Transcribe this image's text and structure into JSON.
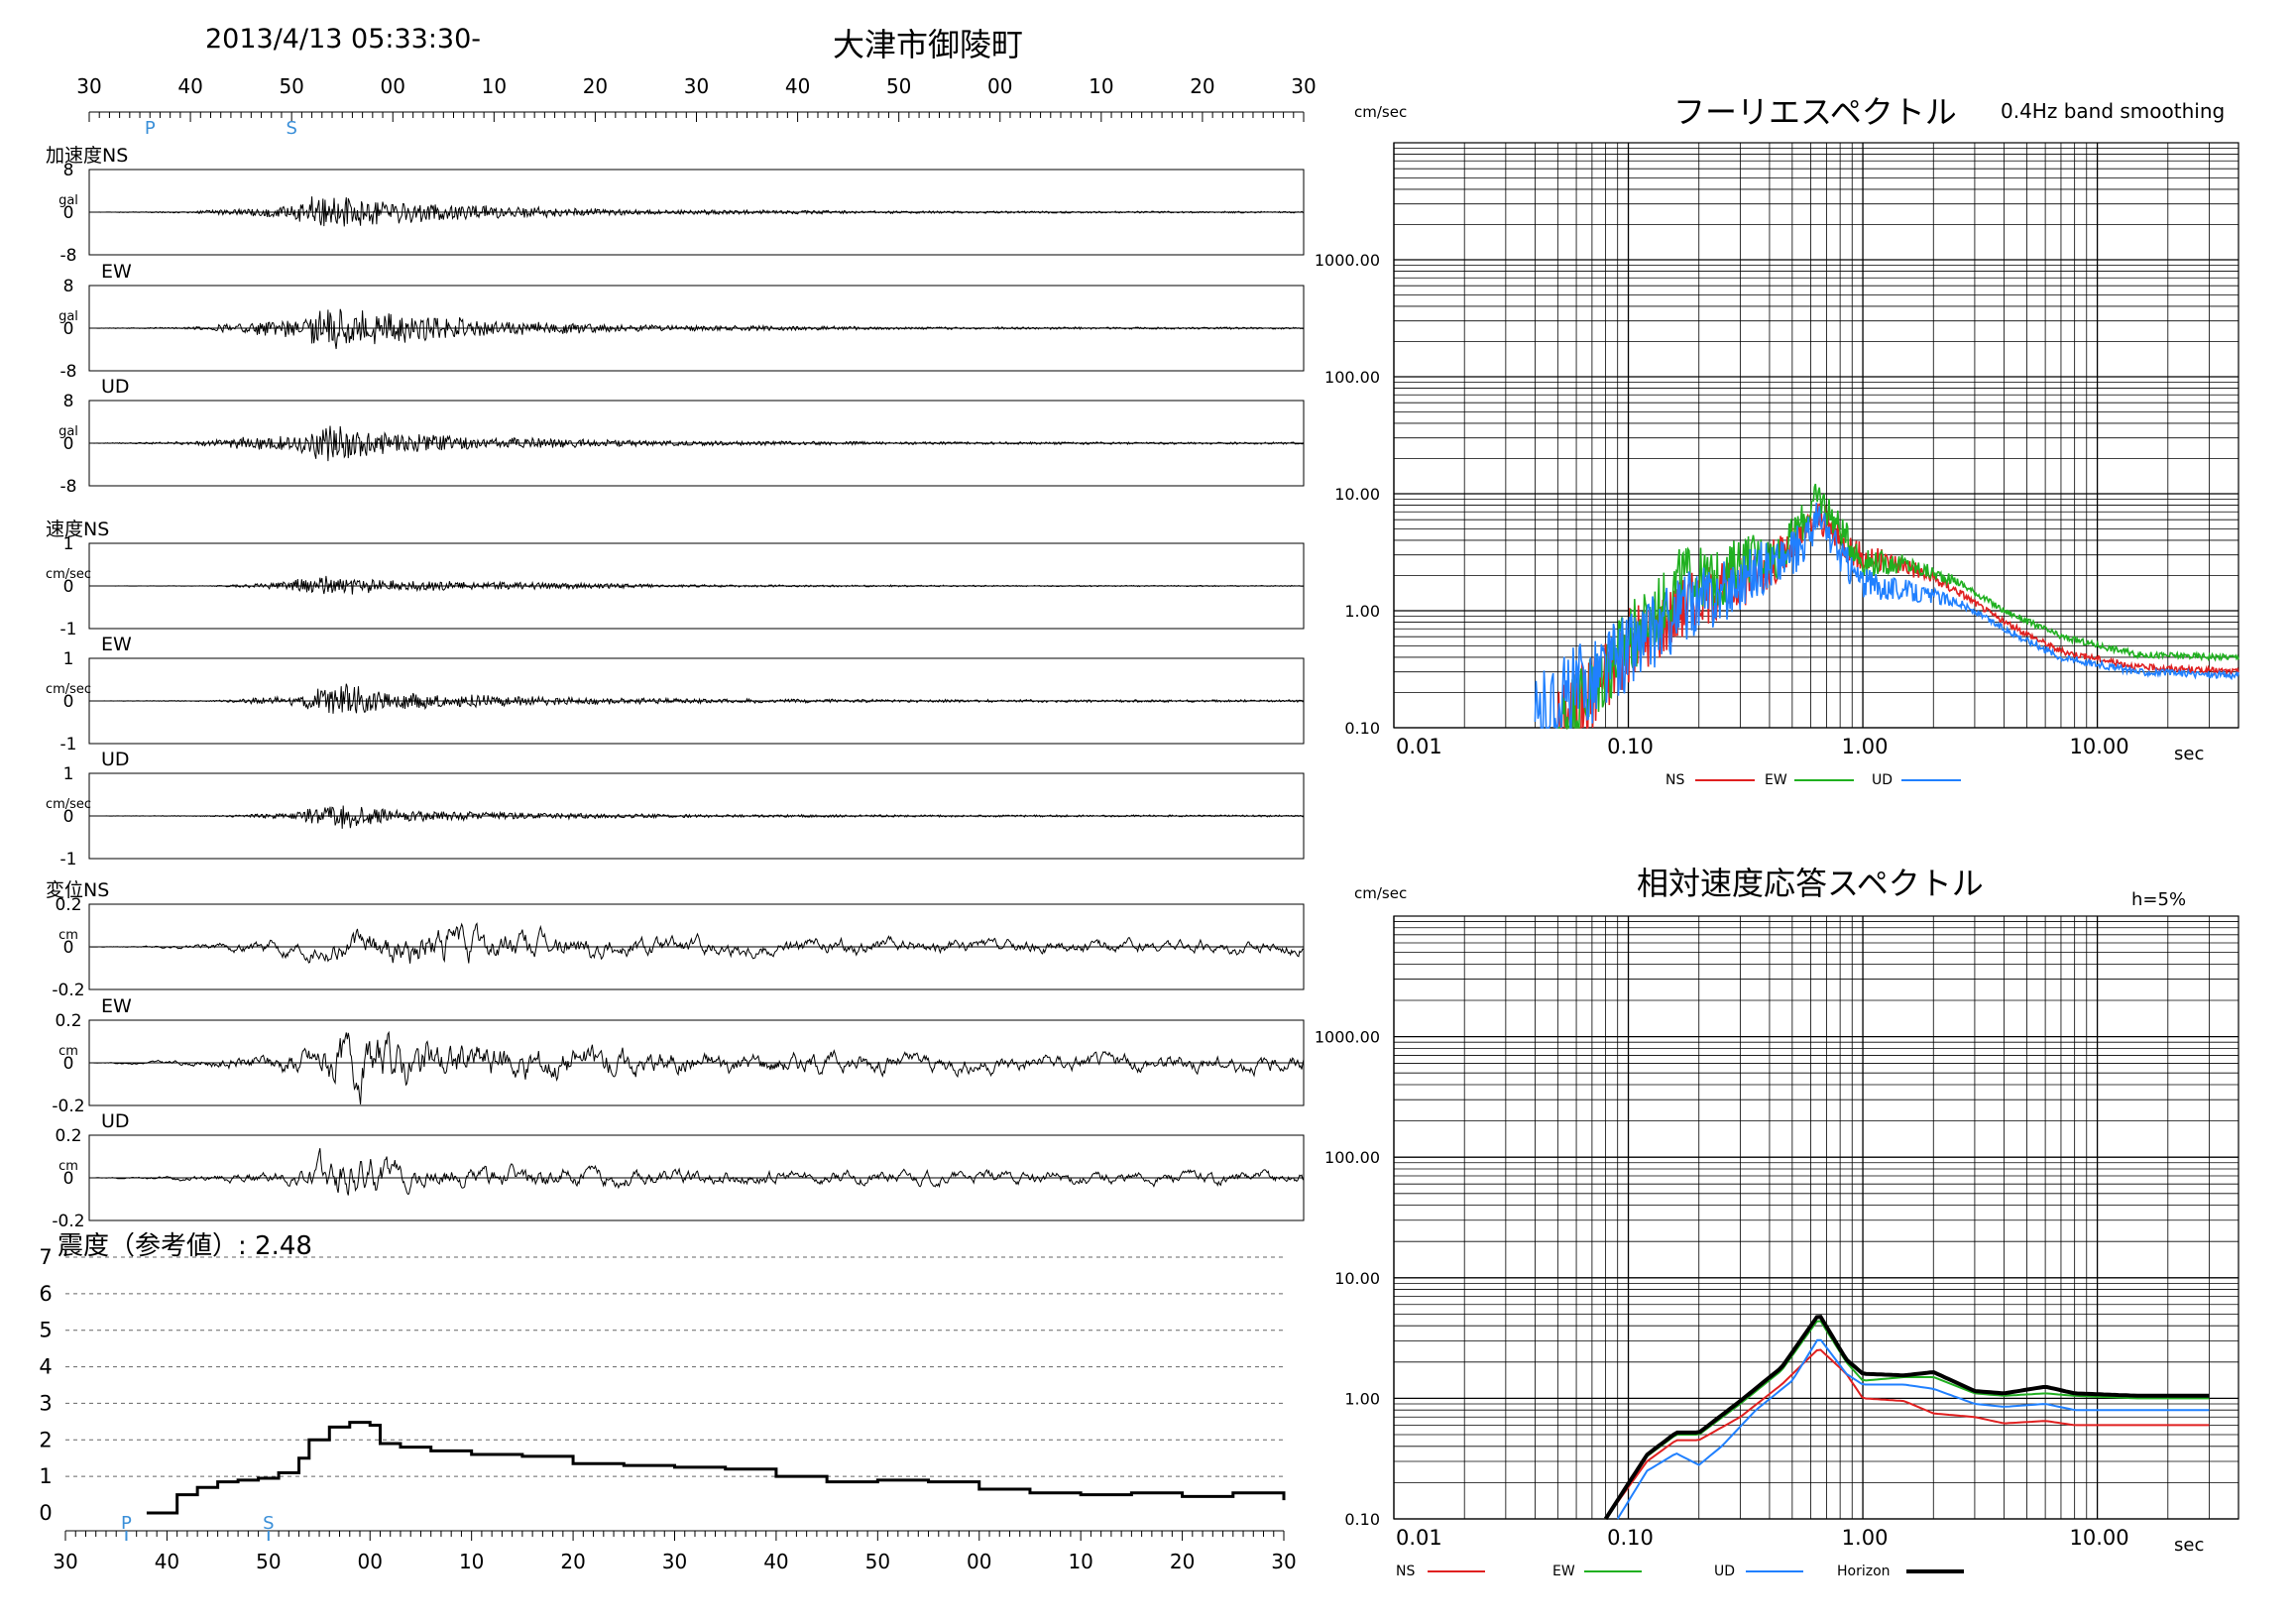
{
  "header": {
    "datetime": "2013/4/13 05:33:30-",
    "station": "大津市御陵町"
  },
  "colors": {
    "ns": "#e02020",
    "ew": "#20b020",
    "ud": "#2080ff",
    "horizon": "#000000",
    "marker": "#3a8fd8"
  },
  "waveforms": {
    "time_ticks": [
      "30",
      "40",
      "50",
      "00",
      "10",
      "20",
      "30",
      "40",
      "50",
      "00",
      "10",
      "20",
      "30"
    ],
    "phase_markers": [
      {
        "label": "P",
        "t": 36
      },
      {
        "label": "S",
        "t": 50
      }
    ],
    "panels": [
      {
        "name": "acc-ns",
        "label": "加速度NS",
        "unit": "gal",
        "ticks": [
          "8",
          "0",
          "-8"
        ],
        "max": 8,
        "amp": 3.4,
        "envelope": [
          [
            0,
            0
          ],
          [
            10,
            0.05
          ],
          [
            16,
            0.25
          ],
          [
            20,
            0.35
          ],
          [
            22,
            1.0
          ],
          [
            28,
            0.7
          ],
          [
            40,
            0.35
          ],
          [
            55,
            0.15
          ],
          [
            80,
            0.07
          ],
          [
            120,
            0.04
          ]
        ],
        "seed": 11
      },
      {
        "name": "acc-ew",
        "label": "EW",
        "unit": "gal",
        "ticks": [
          "8",
          "0",
          "-8"
        ],
        "max": 8,
        "amp": 4.2,
        "envelope": [
          [
            0,
            0
          ],
          [
            10,
            0.05
          ],
          [
            16,
            0.3
          ],
          [
            21,
            0.45
          ],
          [
            23,
            1.0
          ],
          [
            28,
            0.8
          ],
          [
            40,
            0.35
          ],
          [
            55,
            0.15
          ],
          [
            80,
            0.06
          ],
          [
            120,
            0.04
          ]
        ],
        "seed": 23
      },
      {
        "name": "acc-ud",
        "label": "UD",
        "unit": "gal",
        "ticks": [
          "8",
          "0",
          "-8"
        ],
        "max": 8,
        "amp": 3.8,
        "envelope": [
          [
            0,
            0
          ],
          [
            10,
            0.08
          ],
          [
            16,
            0.35
          ],
          [
            21,
            0.5
          ],
          [
            23,
            1.0
          ],
          [
            28,
            0.6
          ],
          [
            40,
            0.3
          ],
          [
            55,
            0.14
          ],
          [
            80,
            0.07
          ],
          [
            120,
            0.05
          ]
        ],
        "seed": 37
      },
      {
        "name": "vel-ns",
        "label": "速度NS",
        "unit": "cm/sec",
        "ticks": [
          "1",
          "0",
          "-1"
        ],
        "max": 1,
        "amp": 0.25,
        "envelope": [
          [
            0,
            0
          ],
          [
            12,
            0.03
          ],
          [
            18,
            0.3
          ],
          [
            23,
            1.0
          ],
          [
            32,
            0.5
          ],
          [
            45,
            0.3
          ],
          [
            60,
            0.12
          ],
          [
            90,
            0.06
          ],
          [
            120,
            0.05
          ]
        ],
        "seed": 41
      },
      {
        "name": "vel-ew",
        "label": "EW",
        "unit": "cm/sec",
        "ticks": [
          "1",
          "0",
          "-1"
        ],
        "max": 1,
        "amp": 0.45,
        "envelope": [
          [
            0,
            0
          ],
          [
            12,
            0.03
          ],
          [
            20,
            0.25
          ],
          [
            25,
            1.0
          ],
          [
            30,
            0.45
          ],
          [
            45,
            0.22
          ],
          [
            60,
            0.12
          ],
          [
            90,
            0.07
          ],
          [
            120,
            0.06
          ]
        ],
        "seed": 53
      },
      {
        "name": "vel-ud",
        "label": "UD",
        "unit": "cm/sec",
        "ticks": [
          "1",
          "0",
          "-1"
        ],
        "max": 1,
        "amp": 0.35,
        "envelope": [
          [
            0,
            0
          ],
          [
            12,
            0.03
          ],
          [
            20,
            0.2
          ],
          [
            25,
            1.0
          ],
          [
            30,
            0.4
          ],
          [
            45,
            0.2
          ],
          [
            60,
            0.1
          ],
          [
            90,
            0.07
          ],
          [
            120,
            0.06
          ]
        ],
        "seed": 67
      },
      {
        "name": "disp-ns",
        "label": "変位NS",
        "unit": "cm",
        "ticks": [
          "0.2",
          "0",
          "-0.2"
        ],
        "max": 0.2,
        "amp": 0.12,
        "envelope": [
          [
            0,
            0
          ],
          [
            10,
            0.1
          ],
          [
            20,
            0.4
          ],
          [
            35,
            1.0
          ],
          [
            45,
            0.6
          ],
          [
            60,
            0.4
          ],
          [
            90,
            0.3
          ],
          [
            120,
            0.3
          ]
        ],
        "seed": 71
      },
      {
        "name": "disp-ew",
        "label": "EW",
        "unit": "cm",
        "ticks": [
          "0.2",
          "0",
          "-0.2"
        ],
        "max": 0.2,
        "amp": 0.16,
        "envelope": [
          [
            0,
            0
          ],
          [
            10,
            0.1
          ],
          [
            20,
            0.4
          ],
          [
            25,
            1.0
          ],
          [
            40,
            0.7
          ],
          [
            60,
            0.4
          ],
          [
            90,
            0.3
          ],
          [
            120,
            0.3
          ]
        ],
        "seed": 83
      },
      {
        "name": "disp-ud",
        "label": "UD",
        "unit": "cm",
        "ticks": [
          "0.2",
          "0",
          "-0.2"
        ],
        "max": 0.2,
        "amp": 0.14,
        "envelope": [
          [
            0,
            0
          ],
          [
            10,
            0.1
          ],
          [
            20,
            0.3
          ],
          [
            25,
            1.0
          ],
          [
            32,
            0.5
          ],
          [
            60,
            0.3
          ],
          [
            90,
            0.25
          ],
          [
            120,
            0.25
          ]
        ],
        "seed": 97
      }
    ]
  },
  "intensity": {
    "title": "震度（参考値）: 2.48",
    "yticks": [
      "7",
      "6",
      "5",
      "4",
      "3",
      "2",
      "1",
      "0"
    ],
    "time_ticks": [
      "30",
      "40",
      "50",
      "00",
      "10",
      "20",
      "30",
      "40",
      "50",
      "00",
      "10",
      "20",
      "30"
    ],
    "phase_markers": [
      {
        "label": "P",
        "t": 36
      },
      {
        "label": "S",
        "t": 50
      }
    ],
    "series": [
      [
        0,
        0
      ],
      [
        38,
        0
      ],
      [
        40,
        0
      ],
      [
        41,
        0.5
      ],
      [
        43,
        0.7
      ],
      [
        45,
        0.85
      ],
      [
        47,
        0.9
      ],
      [
        49,
        0.95
      ],
      [
        51,
        1.1
      ],
      [
        53,
        1.5
      ],
      [
        54,
        2.0
      ],
      [
        56,
        2.35
      ],
      [
        58,
        2.48
      ],
      [
        60,
        2.4
      ],
      [
        61,
        1.9
      ],
      [
        63,
        1.8
      ],
      [
        66,
        1.7
      ],
      [
        70,
        1.6
      ],
      [
        75,
        1.55
      ],
      [
        80,
        1.35
      ],
      [
        85,
        1.3
      ],
      [
        90,
        1.25
      ],
      [
        95,
        1.2
      ],
      [
        100,
        1.0
      ],
      [
        105,
        0.85
      ],
      [
        110,
        0.9
      ],
      [
        115,
        0.85
      ],
      [
        120,
        0.65
      ],
      [
        125,
        0.55
      ],
      [
        130,
        0.5
      ],
      [
        135,
        0.55
      ],
      [
        140,
        0.45
      ],
      [
        145,
        0.55
      ],
      [
        150,
        0.35
      ],
      [
        155,
        0.45
      ],
      [
        160,
        0.4
      ],
      [
        165,
        0.35
      ],
      [
        170,
        0.05
      ],
      [
        180,
        0
      ],
      [
        210,
        0
      ]
    ]
  },
  "fourier": {
    "title": "フーリエスペクトル",
    "note": "0.4Hz band smoothing",
    "ylabel": "cm/sec",
    "xlabel": "sec",
    "yticks": [
      "1000.00",
      "100.00",
      "10.00",
      "1.00",
      "0.10"
    ],
    "xticks": [
      "0.01",
      "0.10",
      "1.00",
      "10.00"
    ],
    "xlim": [
      0.01,
      40
    ],
    "ylim": [
      0.1,
      10000
    ],
    "legend": [
      "NS",
      "EW",
      "UD"
    ],
    "series": [
      {
        "name": "NS",
        "color": "#e02020",
        "jitter": 0.18,
        "points": [
          [
            0.05,
            0.1
          ],
          [
            0.07,
            0.2
          ],
          [
            0.1,
            0.5
          ],
          [
            0.13,
            0.7
          ],
          [
            0.18,
            1.2
          ],
          [
            0.25,
            1.5
          ],
          [
            0.35,
            2.0
          ],
          [
            0.5,
            3.5
          ],
          [
            0.65,
            6.5
          ],
          [
            0.8,
            4.0
          ],
          [
            1.0,
            2.8
          ],
          [
            1.5,
            2.5
          ],
          [
            2.5,
            1.5
          ],
          [
            4,
            0.8
          ],
          [
            7,
            0.45
          ],
          [
            15,
            0.33
          ],
          [
            40,
            0.3
          ]
        ]
      },
      {
        "name": "EW",
        "color": "#20b020",
        "jitter": 0.18,
        "points": [
          [
            0.05,
            0.1
          ],
          [
            0.07,
            0.22
          ],
          [
            0.1,
            0.55
          ],
          [
            0.13,
            0.9
          ],
          [
            0.17,
            2.0
          ],
          [
            0.25,
            1.8
          ],
          [
            0.3,
            2.8
          ],
          [
            0.45,
            3.0
          ],
          [
            0.65,
            9.5
          ],
          [
            0.8,
            5.0
          ],
          [
            1.0,
            2.6
          ],
          [
            1.5,
            2.5
          ],
          [
            2.5,
            1.8
          ],
          [
            4,
            1.0
          ],
          [
            7,
            0.6
          ],
          [
            15,
            0.42
          ],
          [
            40,
            0.4
          ]
        ]
      },
      {
        "name": "UD",
        "color": "#2080ff",
        "jitter": 0.2,
        "points": [
          [
            0.04,
            0.1
          ],
          [
            0.06,
            0.2
          ],
          [
            0.1,
            0.45
          ],
          [
            0.13,
            0.65
          ],
          [
            0.18,
            1.1
          ],
          [
            0.25,
            1.4
          ],
          [
            0.35,
            2.2
          ],
          [
            0.5,
            3.0
          ],
          [
            0.65,
            6.0
          ],
          [
            0.8,
            3.0
          ],
          [
            1.0,
            1.7
          ],
          [
            1.5,
            1.5
          ],
          [
            2.5,
            1.2
          ],
          [
            4,
            0.7
          ],
          [
            7,
            0.4
          ],
          [
            15,
            0.3
          ],
          [
            40,
            0.28
          ]
        ]
      }
    ]
  },
  "response": {
    "title": "相対速度応答スペクトル",
    "note": "h=5%",
    "ylabel": "cm/sec",
    "xlabel": "sec",
    "yticks": [
      "1000.00",
      "100.00",
      "10.00",
      "1.00",
      "0.10"
    ],
    "xticks": [
      "0.01",
      "0.10",
      "1.00",
      "10.00"
    ],
    "xlim": [
      0.01,
      40
    ],
    "ylim": [
      0.1,
      10000
    ],
    "legend": [
      "NS",
      "EW",
      "UD",
      "Horizon"
    ],
    "series": [
      {
        "name": "NS",
        "color": "#e02020",
        "width": 2,
        "points": [
          [
            0.08,
            0.1
          ],
          [
            0.12,
            0.3
          ],
          [
            0.16,
            0.45
          ],
          [
            0.2,
            0.45
          ],
          [
            0.3,
            0.7
          ],
          [
            0.45,
            1.3
          ],
          [
            0.65,
            2.6
          ],
          [
            0.85,
            1.6
          ],
          [
            1.0,
            1.0
          ],
          [
            1.5,
            0.95
          ],
          [
            2.0,
            0.75
          ],
          [
            3,
            0.7
          ],
          [
            4,
            0.62
          ],
          [
            6,
            0.65
          ],
          [
            8,
            0.6
          ],
          [
            15,
            0.6
          ],
          [
            30,
            0.6
          ]
        ]
      },
      {
        "name": "EW",
        "color": "#20b020",
        "width": 2,
        "points": [
          [
            0.08,
            0.1
          ],
          [
            0.12,
            0.33
          ],
          [
            0.16,
            0.5
          ],
          [
            0.2,
            0.5
          ],
          [
            0.3,
            0.9
          ],
          [
            0.45,
            1.7
          ],
          [
            0.65,
            4.6
          ],
          [
            0.85,
            2.0
          ],
          [
            1.0,
            1.4
          ],
          [
            1.5,
            1.5
          ],
          [
            2.0,
            1.5
          ],
          [
            3,
            1.1
          ],
          [
            4,
            1.05
          ],
          [
            6,
            1.1
          ],
          [
            8,
            1.05
          ],
          [
            15,
            1.0
          ],
          [
            30,
            1.0
          ]
        ]
      },
      {
        "name": "UD",
        "color": "#2080ff",
        "width": 2,
        "points": [
          [
            0.09,
            0.1
          ],
          [
            0.12,
            0.25
          ],
          [
            0.16,
            0.35
          ],
          [
            0.2,
            0.28
          ],
          [
            0.25,
            0.4
          ],
          [
            0.35,
            0.8
          ],
          [
            0.5,
            1.4
          ],
          [
            0.65,
            3.2
          ],
          [
            0.85,
            1.6
          ],
          [
            1.0,
            1.3
          ],
          [
            1.5,
            1.3
          ],
          [
            2.0,
            1.2
          ],
          [
            3,
            0.9
          ],
          [
            4,
            0.85
          ],
          [
            6,
            0.9
          ],
          [
            8,
            0.8
          ],
          [
            15,
            0.8
          ],
          [
            30,
            0.8
          ]
        ]
      },
      {
        "name": "Horizon",
        "color": "#000000",
        "width": 4,
        "points": [
          [
            0.08,
            0.1
          ],
          [
            0.12,
            0.34
          ],
          [
            0.16,
            0.52
          ],
          [
            0.2,
            0.52
          ],
          [
            0.3,
            0.95
          ],
          [
            0.45,
            1.8
          ],
          [
            0.65,
            5.0
          ],
          [
            0.85,
            2.1
          ],
          [
            1.0,
            1.6
          ],
          [
            1.5,
            1.55
          ],
          [
            2.0,
            1.65
          ],
          [
            3,
            1.15
          ],
          [
            4,
            1.1
          ],
          [
            6,
            1.25
          ],
          [
            8,
            1.1
          ],
          [
            15,
            1.05
          ],
          [
            30,
            1.05
          ]
        ]
      }
    ]
  }
}
